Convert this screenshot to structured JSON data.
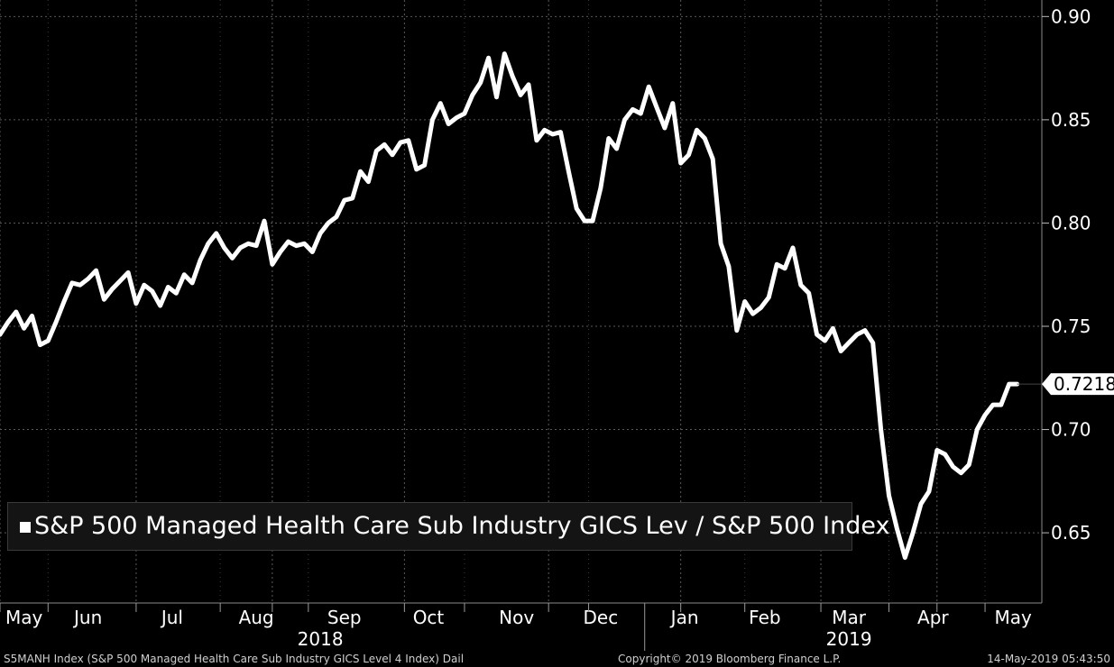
{
  "chart_data": {
    "type": "line",
    "title": "S&P 500 Managed Health Care Sub Industry GICS Lev / S&P 500 Index",
    "xlabel": "",
    "ylabel": "",
    "ylim": [
      0.616,
      0.908
    ],
    "xlim": [
      0,
      255
    ],
    "grid": true,
    "line_color": "#ffffff",
    "y_ticks": [
      0.65,
      0.7,
      0.75,
      0.8,
      0.85,
      0.9
    ],
    "y_tick_labels": [
      "0.65",
      "0.70",
      "0.75",
      "0.80",
      "0.85",
      "0.90"
    ],
    "month_ticks": [
      {
        "label": "May",
        "x": 6
      },
      {
        "label": "Jun",
        "x": 22
      },
      {
        "label": "Jul",
        "x": 43
      },
      {
        "label": "Aug",
        "x": 64
      },
      {
        "label": "Sep",
        "x": 86
      },
      {
        "label": "Oct",
        "x": 107
      },
      {
        "label": "Nov",
        "x": 129
      },
      {
        "label": "Dec",
        "x": 150
      },
      {
        "label": "Jan",
        "x": 171
      },
      {
        "label": "Feb",
        "x": 191
      },
      {
        "label": "Mar",
        "x": 212
      },
      {
        "label": "Apr",
        "x": 233
      },
      {
        "label": "May",
        "x": 253
      }
    ],
    "major_gridlines_x": [
      0,
      34,
      68,
      101,
      137,
      170,
      205,
      234
    ],
    "minor_gridlines_x": [
      12,
      55,
      77,
      116,
      147,
      186,
      222,
      246
    ],
    "year_labels": [
      {
        "label": "2018",
        "x": 80
      },
      {
        "label": "2019",
        "x": 212
      }
    ],
    "year_separator_x": 161,
    "last_value_label": "0.7218",
    "series": [
      {
        "name": "S&P 500 Managed Health Care Sub Industry GICS Lev / S&P 500 Index",
        "x": [
          0,
          2,
          4,
          6,
          8,
          10,
          12,
          14,
          16,
          18,
          20,
          22,
          24,
          26,
          28,
          30,
          32,
          34,
          36,
          38,
          40,
          42,
          44,
          46,
          48,
          50,
          52,
          54,
          56,
          58,
          60,
          62,
          64,
          66,
          68,
          70,
          72,
          74,
          76,
          78,
          80,
          82,
          84,
          86,
          88,
          90,
          92,
          94,
          96,
          98,
          100,
          102,
          104,
          106,
          108,
          110,
          112,
          114,
          116,
          118,
          120,
          122,
          124,
          126,
          128,
          130,
          132,
          134,
          136,
          138,
          140,
          142,
          144,
          146,
          148,
          150,
          152,
          154,
          156,
          158,
          160,
          162,
          164,
          166,
          168,
          170,
          172,
          174,
          176,
          178,
          180,
          182,
          184,
          186,
          188,
          190,
          192,
          194,
          196,
          198,
          200,
          202,
          204,
          206,
          208,
          210,
          212,
          214,
          216,
          218,
          220,
          222,
          224,
          226,
          228,
          230,
          232,
          234,
          236,
          238,
          240,
          242,
          244,
          246,
          248,
          250,
          252,
          254
        ],
        "values": [
          0.746,
          0.752,
          0.757,
          0.749,
          0.755,
          0.741,
          0.743,
          0.752,
          0.762,
          0.771,
          0.77,
          0.773,
          0.777,
          0.763,
          0.768,
          0.772,
          0.776,
          0.761,
          0.77,
          0.767,
          0.76,
          0.769,
          0.766,
          0.775,
          0.771,
          0.782,
          0.79,
          0.795,
          0.788,
          0.783,
          0.788,
          0.79,
          0.789,
          0.801,
          0.78,
          0.786,
          0.791,
          0.789,
          0.79,
          0.786,
          0.795,
          0.8,
          0.803,
          0.811,
          0.812,
          0.825,
          0.82,
          0.835,
          0.838,
          0.833,
          0.839,
          0.84,
          0.826,
          0.828,
          0.85,
          0.858,
          0.848,
          0.851,
          0.853,
          0.862,
          0.868,
          0.88,
          0.861,
          0.882,
          0.871,
          0.862,
          0.867,
          0.84,
          0.845,
          0.843,
          0.844,
          0.825,
          0.807,
          0.801,
          0.801,
          0.817,
          0.841,
          0.836,
          0.85,
          0.855,
          0.853,
          0.866,
          0.856,
          0.846,
          0.858,
          0.829,
          0.833,
          0.845,
          0.841,
          0.831,
          0.79,
          0.779,
          0.748,
          0.762,
          0.756,
          0.759,
          0.764,
          0.78,
          0.778,
          0.788,
          0.77,
          0.766,
          0.746,
          0.743,
          0.749,
          0.738,
          0.742,
          0.746,
          0.748,
          0.742,
          0.7,
          0.668,
          0.652,
          0.638,
          0.65,
          0.664,
          0.67,
          0.69,
          0.688,
          0.682,
          0.679,
          0.683,
          0.7,
          0.707,
          0.712,
          0.712,
          0.722,
          0.722
        ]
      }
    ]
  },
  "footer": {
    "left": "S5MANH Index (S&P 500 Managed Health Care Sub Industry GICS Level 4 Index)  Dail",
    "center": "Copyright© 2019 Bloomberg Finance L.P.",
    "right": "14-May-2019 05:43:50"
  }
}
